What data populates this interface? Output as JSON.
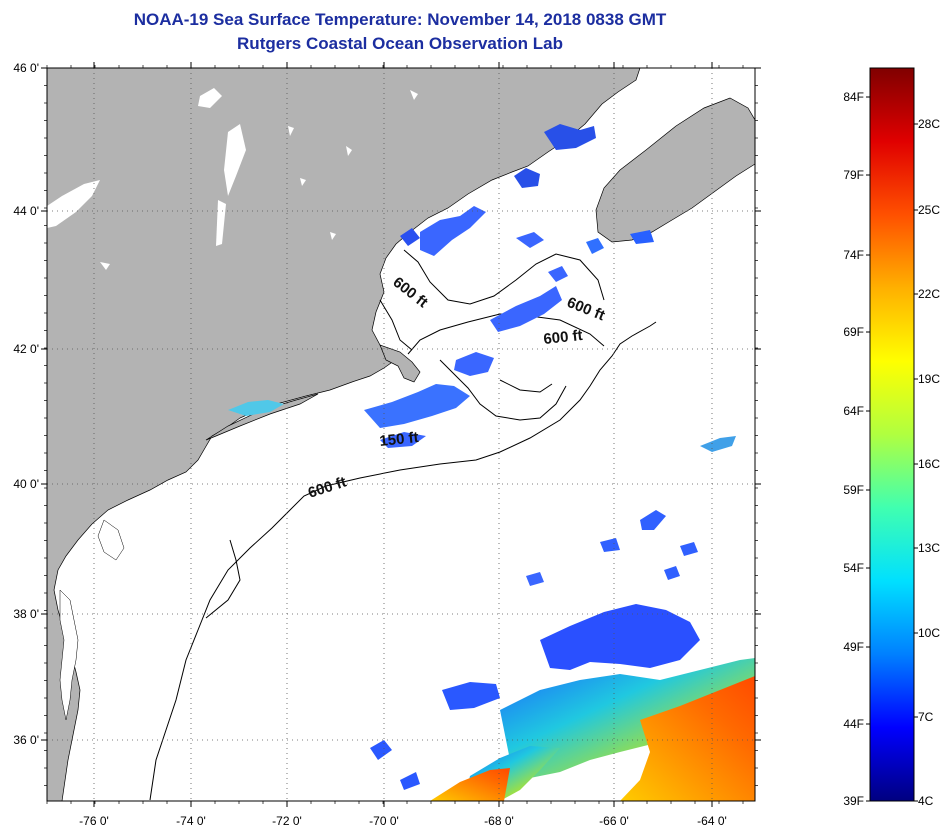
{
  "title": "NOAA-19 Sea Surface Temperature:  November 14, 2018 0838 GMT",
  "subtitle": "Rutgers Coastal Ocean Observation Lab",
  "lat_labels": [
    "46 0'",
    "44 0'",
    "42 0'",
    "40 0'",
    "38 0'",
    "36 0'"
  ],
  "lon_labels": [
    "-76 0'",
    "-74 0'",
    "-72 0'",
    "-70 0'",
    "-68 0'",
    "-66 0'",
    "-64 0'"
  ],
  "contours": [
    {
      "label": "600 ft"
    },
    {
      "label": "600 ft"
    },
    {
      "label": "600 ft"
    },
    {
      "label": "150 ft"
    },
    {
      "label": "600 ft"
    }
  ],
  "colorbar": {
    "f_labels": [
      "84F",
      "79F",
      "74F",
      "69F",
      "64F",
      "59F",
      "54F",
      "49F",
      "44F",
      "39F"
    ],
    "c_labels": [
      "28C",
      "25C",
      "22C",
      "19C",
      "16C",
      "13C",
      "10C",
      "7C",
      "4C"
    ],
    "colors": [
      "#000080",
      "#0000ff",
      "#0080ff",
      "#00e0ff",
      "#40ffb0",
      "#b0ff40",
      "#ffff00",
      "#ffb000",
      "#ff5000",
      "#e00000",
      "#800000"
    ]
  },
  "colors": {
    "land": "#b3b3b3",
    "water": "#ffffff",
    "title": "#1c2ea0"
  }
}
